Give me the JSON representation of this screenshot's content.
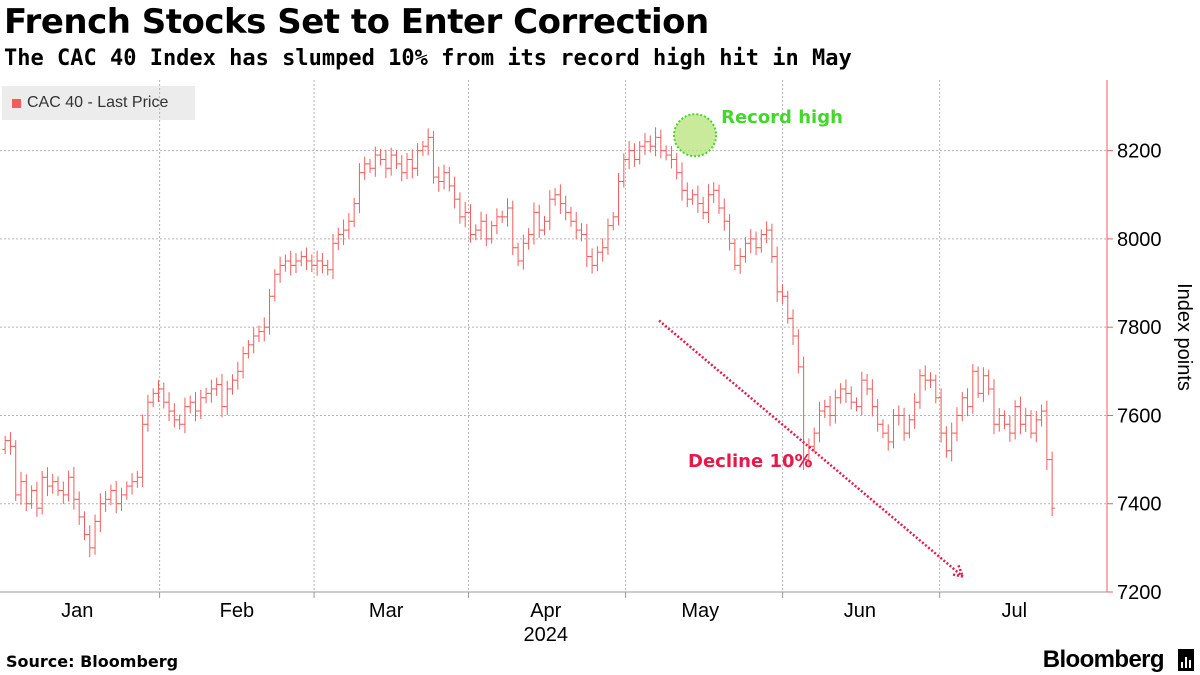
{
  "header": {
    "title": "French Stocks Set to Enter Correction",
    "subtitle": "The CAC 40 Index has slumped 10% from its record high hit in May"
  },
  "footer": {
    "source": "Source: Bloomberg",
    "brand": "Bloomberg"
  },
  "colors": {
    "series": "#f25c5c",
    "record_high": "#44d62c",
    "record_high_fill": "#b7e37a",
    "decline": "#e8194a",
    "axis": "#f25c5c",
    "grid": "#b5b5b5"
  },
  "chart_data": {
    "type": "bar",
    "subtype": "ohlc",
    "title": "French Stocks Set to Enter Correction",
    "ylabel": "Index points",
    "ylim": [
      7200,
      8360
    ],
    "yticks": [
      7200,
      7400,
      7600,
      7800,
      8000,
      8200
    ],
    "y_axis_position": "right",
    "x_range_days": [
      0,
      215
    ],
    "xticks": [
      {
        "label": "Jan",
        "day": 15
      },
      {
        "label": "Feb",
        "day": 46
      },
      {
        "label": "Mar",
        "day": 75
      },
      {
        "label": "Apr",
        "day": 106
      },
      {
        "label": "May",
        "day": 136
      },
      {
        "label": "Jun",
        "day": 167
      },
      {
        "label": "Jul",
        "day": 197
      }
    ],
    "year_label": "2024",
    "legend": [
      {
        "name": "CAC 40 - Last Price"
      }
    ],
    "series": [
      {
        "name": "CAC 40 - Last Price",
        "start_day": 1,
        "step_days": 1.027,
        "close": [
          7543,
          7530,
          7420,
          7450,
          7400,
          7430,
          7390,
          7460,
          7440,
          7450,
          7430,
          7420,
          7460,
          7410,
          7370,
          7330,
          7300,
          7360,
          7400,
          7410,
          7430,
          7400,
          7420,
          7440,
          7450,
          7460,
          7580,
          7630,
          7650,
          7660,
          7630,
          7610,
          7590,
          7580,
          7620,
          7630,
          7610,
          7640,
          7650,
          7660,
          7670,
          7620,
          7660,
          7680,
          7700,
          7740,
          7760,
          7780,
          7790,
          7800,
          7870,
          7920,
          7940,
          7950,
          7940,
          7950,
          7960,
          7950,
          7940,
          7950,
          7940,
          7930,
          7990,
          8010,
          8020,
          8040,
          8080,
          8150,
          8170,
          8160,
          8190,
          8180,
          8160,
          8190,
          8170,
          8150,
          8180,
          8160,
          8200,
          8210,
          8230,
          8140,
          8130,
          8150,
          8120,
          8090,
          8050,
          8060,
          8010,
          8020,
          8040,
          8000,
          8030,
          8050,
          8050,
          8070,
          7980,
          7950,
          7990,
          8010,
          8060,
          8020,
          8040,
          8090,
          8100,
          8080,
          8060,
          8040,
          8020,
          8010,
          7960,
          7940,
          7970,
          7980,
          8030,
          8050,
          8130,
          8180,
          8200,
          8180,
          8210,
          8220,
          8210,
          8230,
          8200,
          8190,
          8180,
          8150,
          8110,
          8090,
          8100,
          8080,
          8060,
          8100,
          8110,
          8070,
          8040,
          7990,
          7940,
          7960,
          7990,
          8000,
          7980,
          8010,
          8020,
          7960,
          7880,
          7870,
          7820,
          7780,
          7710,
          7500,
          7530,
          7560,
          7610,
          7620,
          7600,
          7640,
          7660,
          7650,
          7630,
          7620,
          7680,
          7660,
          7620,
          7580,
          7560,
          7540,
          7600,
          7600,
          7560,
          7590,
          7630,
          7690,
          7680,
          7680,
          7640,
          7560,
          7520,
          7560,
          7600,
          7640,
          7620,
          7700,
          7650,
          7690,
          7660,
          7580,
          7600,
          7580,
          7560,
          7620,
          7580,
          7600,
          7560,
          7590,
          7610,
          7500,
          7390
        ]
      }
    ],
    "annotations": [
      {
        "text": "Record high",
        "day": 135,
        "value": 8235,
        "type": "circle"
      },
      {
        "text": "Decline 10%",
        "from_day": 128,
        "from_value": 7815,
        "to_day": 187,
        "to_value": 7235,
        "type": "arrow"
      }
    ]
  }
}
